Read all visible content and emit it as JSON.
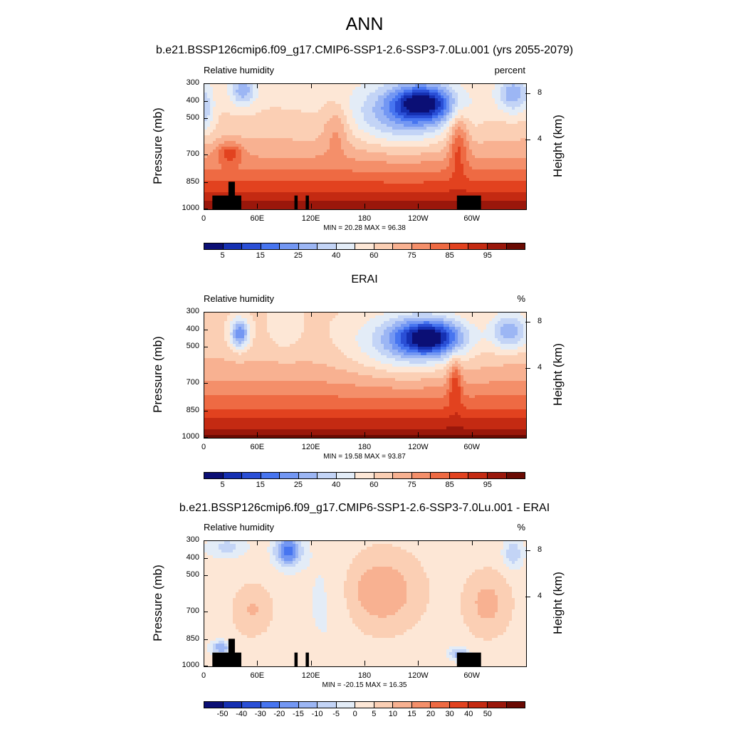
{
  "title": "ANN",
  "chart_data": [
    {
      "type": "heatmap",
      "title": "b.e21.BSSP126cmip6.f09_g17.CMIP6-SSP1-2.6-SSP3-7.0Lu.001 (yrs 2055-2079)",
      "left_label": "Relative humidity",
      "right_label": "percent",
      "ylabel": "Pressure (mb)",
      "ylabel_right": "Height (km)",
      "x_ticks": [
        "0",
        "60E",
        "120E",
        "180",
        "120W",
        "60W"
      ],
      "y_ticks": [
        "300",
        "400",
        "500",
        "700",
        "850",
        "1000"
      ],
      "height_ticks": [
        "8",
        "4"
      ],
      "stats": "MIN = 20.28  MAX = 96.38",
      "colorbar_labels": [
        "5",
        "15",
        "25",
        "40",
        "60",
        "75",
        "85",
        "95"
      ],
      "value_range": [
        20.28,
        96.38
      ]
    },
    {
      "type": "heatmap",
      "title": "ERAI",
      "left_label": "Relative humidity",
      "right_label": "%",
      "ylabel": "Pressure (mb)",
      "ylabel_right": "Height (km)",
      "x_ticks": [
        "0",
        "60E",
        "120E",
        "180",
        "120W",
        "60W"
      ],
      "y_ticks": [
        "300",
        "400",
        "500",
        "700",
        "850",
        "1000"
      ],
      "height_ticks": [
        "8",
        "4"
      ],
      "stats": "MIN = 19.58  MAX = 93.87",
      "colorbar_labels": [
        "5",
        "15",
        "25",
        "40",
        "60",
        "75",
        "85",
        "95"
      ],
      "value_range": [
        19.58,
        93.87
      ]
    },
    {
      "type": "heatmap",
      "title": "b.e21.BSSP126cmip6.f09_g17.CMIP6-SSP1-2.6-SSP3-7.0Lu.001 - ERAI",
      "left_label": "Relative humidity",
      "right_label": "%",
      "ylabel": "Pressure (mb)",
      "ylabel_right": "Height (km)",
      "x_ticks": [
        "0",
        "60E",
        "120E",
        "180",
        "120W",
        "60W"
      ],
      "y_ticks": [
        "300",
        "400",
        "500",
        "700",
        "850",
        "1000"
      ],
      "height_ticks": [
        "8",
        "4"
      ],
      "stats": "MIN = -20.15  MAX = 16.35",
      "colorbar_labels": [
        "-50",
        "-40",
        "-30",
        "-20",
        "-15",
        "-10",
        "-5",
        "0",
        "5",
        "10",
        "15",
        "20",
        "30",
        "40",
        "50"
      ],
      "value_range": [
        -20.15,
        16.35
      ]
    }
  ],
  "colors": {
    "abs_scale": [
      "#0b0f75",
      "#1530b2",
      "#2a4fd6",
      "#4775f0",
      "#7397f3",
      "#9cb6f4",
      "#c3d4f6",
      "#e3ecf7",
      "#fde7d6",
      "#fbcfb4",
      "#f8b191",
      "#f48f6a",
      "#ee6a43",
      "#e2421f",
      "#c42a12",
      "#9a170b",
      "#6a0a03"
    ],
    "diff_scale": [
      "#0b0f75",
      "#1530b2",
      "#2a4fd6",
      "#4775f0",
      "#7397f3",
      "#9cb6f4",
      "#c3d4f6",
      "#e3ecf7",
      "#fde7d6",
      "#fbcfb4",
      "#f8b191",
      "#f48f6a",
      "#ee6a43",
      "#e2421f",
      "#c42a12",
      "#9a170b",
      "#6a0a03"
    ],
    "terrain": "#000000"
  }
}
